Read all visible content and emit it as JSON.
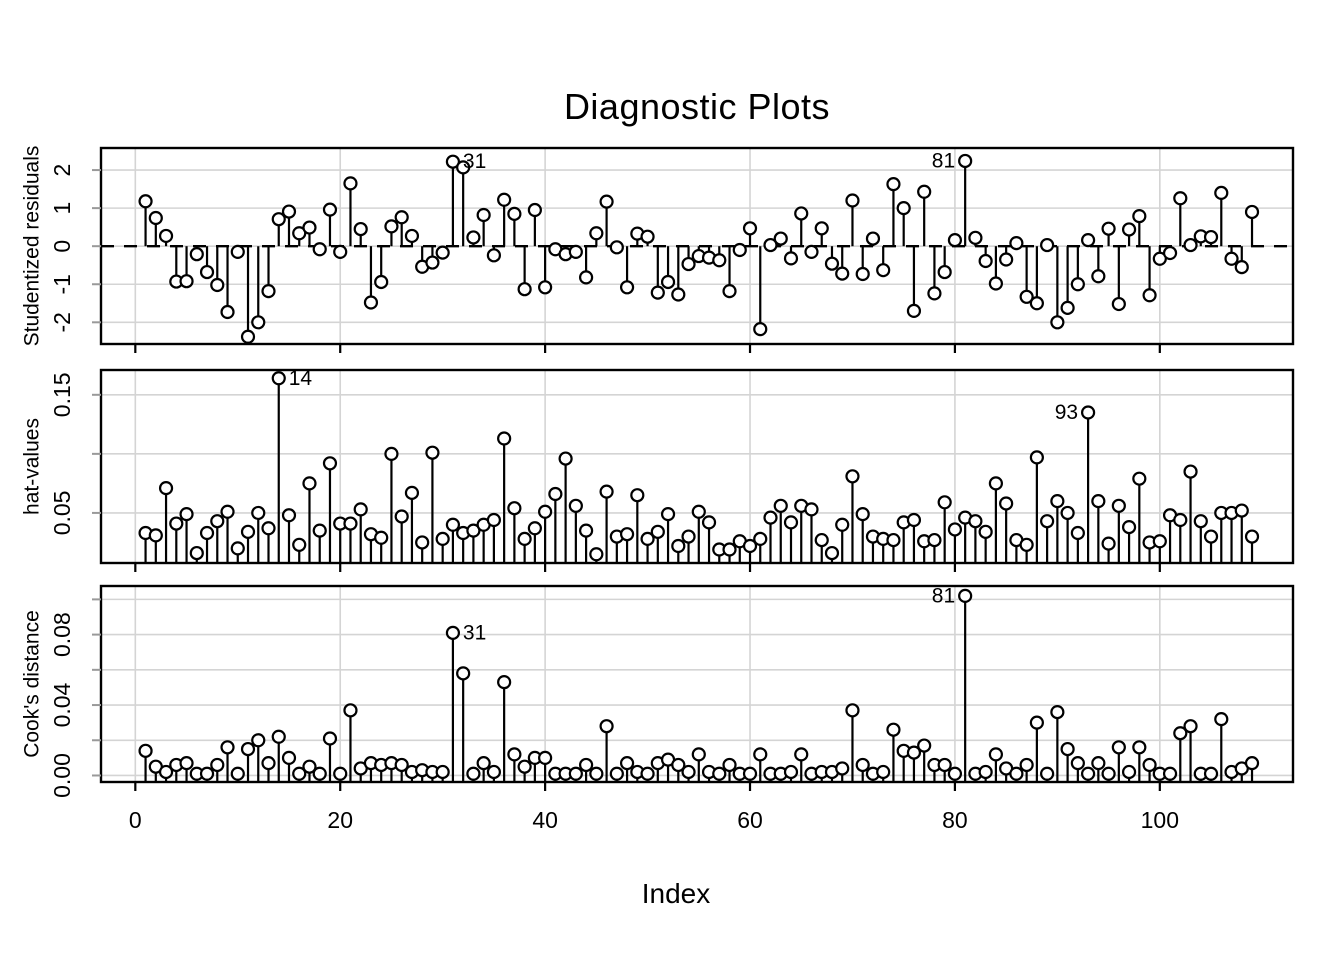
{
  "title": "Diagnostic Plots",
  "x_axis": {
    "label": "Index",
    "ticks": [
      0,
      20,
      40,
      60,
      80,
      100
    ],
    "range": [
      0,
      113
    ]
  },
  "colors": {
    "foreground": "#000000",
    "gridline": "#d4d4d4",
    "axis_tick_minor": "#999999",
    "point_fill": "#ffffff",
    "background": "#ffffff"
  },
  "chart_data": {
    "type": "stem",
    "title": "Diagnostic Plots",
    "xlabel": "Index",
    "x_start_index": 1,
    "n_points": 109,
    "panels": [
      {
        "name": "studentized-residuals",
        "ylabel": "Studentized residuals",
        "ytick_values": [
          -2,
          -1,
          0,
          1,
          2
        ],
        "ytick_labels": [
          "-2",
          "-1",
          "0",
          "1",
          "2"
        ],
        "gridlines": [
          -2,
          -1,
          0,
          1,
          2
        ],
        "ylim": [
          -2.57,
          2.58
        ],
        "baseline": 0,
        "zero_line_dashed": true,
        "annotations": [
          {
            "index": 31,
            "label": "31",
            "side": "right"
          },
          {
            "index": 81,
            "label": "81",
            "side": "left"
          }
        ],
        "values": [
          1.18,
          0.74,
          0.27,
          -0.93,
          -0.92,
          -0.21,
          -0.68,
          -1.02,
          -1.73,
          -0.15,
          -2.38,
          -2.0,
          -1.18,
          0.71,
          0.91,
          0.34,
          0.49,
          -0.08,
          0.96,
          -0.15,
          1.65,
          0.45,
          -1.48,
          -0.94,
          0.52,
          0.76,
          0.27,
          -0.54,
          -0.43,
          -0.17,
          2.22,
          2.07,
          0.23,
          0.82,
          -0.24,
          1.22,
          0.85,
          -1.13,
          0.95,
          -1.08,
          -0.08,
          -0.21,
          -0.15,
          -0.82,
          0.34,
          1.17,
          -0.03,
          -1.08,
          0.33,
          0.25,
          -1.22,
          -0.94,
          -1.27,
          -0.47,
          -0.26,
          -0.3,
          -0.37,
          -1.18,
          -0.1,
          0.47,
          -2.18,
          0.03,
          0.2,
          -0.32,
          0.86,
          -0.15,
          0.47,
          -0.46,
          -0.72,
          1.2,
          -0.73,
          0.2,
          -0.63,
          1.63,
          1.0,
          -1.7,
          1.43,
          -1.24,
          -0.68,
          0.16,
          2.24,
          0.22,
          -0.39,
          -0.98,
          -0.35,
          0.08,
          -1.33,
          -1.5,
          0.03,
          -2.0,
          -1.62,
          -1.0,
          0.16,
          -0.79,
          0.46,
          -1.52,
          0.44,
          0.79,
          -1.29,
          -0.33,
          -0.18,
          1.26,
          0.03,
          0.26,
          0.24,
          1.4,
          -0.33,
          -0.55,
          0.9
        ]
      },
      {
        "name": "hat-values",
        "ylabel": "hat-values",
        "ytick_values": [
          0.05,
          0.15
        ],
        "ytick_labels": [
          "0.05",
          "0.15"
        ],
        "gridlines": [
          0.05,
          0.1,
          0.15
        ],
        "ylim": [
          0.0076,
          0.171
        ],
        "baseline": "bottom",
        "zero_line_dashed": false,
        "annotations": [
          {
            "index": 14,
            "label": "14",
            "side": "right"
          },
          {
            "index": 93,
            "label": "93",
            "side": "left"
          }
        ],
        "values": [
          0.033,
          0.031,
          0.071,
          0.041,
          0.049,
          0.016,
          0.033,
          0.043,
          0.051,
          0.02,
          0.034,
          0.05,
          0.037,
          0.164,
          0.048,
          0.023,
          0.075,
          0.035,
          0.092,
          0.041,
          0.041,
          0.053,
          0.032,
          0.029,
          0.1,
          0.047,
          0.067,
          0.025,
          0.101,
          0.028,
          0.04,
          0.033,
          0.035,
          0.04,
          0.044,
          0.113,
          0.054,
          0.028,
          0.037,
          0.051,
          0.066,
          0.096,
          0.056,
          0.035,
          0.015,
          0.068,
          0.03,
          0.032,
          0.065,
          0.028,
          0.034,
          0.049,
          0.022,
          0.03,
          0.051,
          0.042,
          0.019,
          0.019,
          0.026,
          0.022,
          0.028,
          0.046,
          0.056,
          0.042,
          0.056,
          0.053,
          0.027,
          0.016,
          0.04,
          0.081,
          0.049,
          0.03,
          0.028,
          0.027,
          0.042,
          0.044,
          0.026,
          0.027,
          0.059,
          0.036,
          0.046,
          0.043,
          0.034,
          0.075,
          0.058,
          0.027,
          0.023,
          0.097,
          0.043,
          0.06,
          0.05,
          0.033,
          0.135,
          0.06,
          0.024,
          0.056,
          0.038,
          0.079,
          0.025,
          0.026,
          0.048,
          0.044,
          0.085,
          0.043,
          0.03,
          0.05,
          0.05,
          0.052,
          0.03
        ]
      },
      {
        "name": "cooks-distance",
        "ylabel": "Cook's distance",
        "ytick_values": [
          0.0,
          0.04,
          0.08
        ],
        "ytick_labels": [
          "0.00",
          "0.04",
          "0.08"
        ],
        "gridlines": [
          0,
          0.02,
          0.04,
          0.06,
          0.08,
          0.1
        ],
        "ylim": [
          -0.0037,
          0.1076
        ],
        "baseline": "bottom",
        "zero_line_dashed": false,
        "annotations": [
          {
            "index": 31,
            "label": "31",
            "side": "right"
          },
          {
            "index": 81,
            "label": "81",
            "side": "left"
          }
        ],
        "values": [
          0.014,
          0.005,
          0.002,
          0.006,
          0.007,
          0.001,
          0.001,
          0.006,
          0.016,
          0.001,
          0.015,
          0.02,
          0.007,
          0.022,
          0.01,
          0.001,
          0.005,
          0.001,
          0.021,
          0.001,
          0.037,
          0.004,
          0.007,
          0.006,
          0.007,
          0.006,
          0.002,
          0.003,
          0.002,
          0.002,
          0.081,
          0.058,
          0.001,
          0.007,
          0.002,
          0.053,
          0.012,
          0.005,
          0.01,
          0.01,
          0.001,
          0.001,
          0.001,
          0.006,
          0.001,
          0.028,
          0.001,
          0.007,
          0.002,
          0.001,
          0.007,
          0.009,
          0.006,
          0.002,
          0.012,
          0.002,
          0.001,
          0.006,
          0.001,
          0.001,
          0.012,
          0.001,
          0.001,
          0.002,
          0.012,
          0.001,
          0.002,
          0.002,
          0.004,
          0.037,
          0.006,
          0.001,
          0.002,
          0.026,
          0.014,
          0.013,
          0.017,
          0.006,
          0.006,
          0.001,
          0.102,
          0.001,
          0.002,
          0.012,
          0.004,
          0.001,
          0.006,
          0.03,
          0.001,
          0.036,
          0.015,
          0.007,
          0.001,
          0.007,
          0.001,
          0.016,
          0.002,
          0.016,
          0.006,
          0.001,
          0.001,
          0.024,
          0.028,
          0.001,
          0.001,
          0.032,
          0.002,
          0.004,
          0.007
        ]
      }
    ]
  }
}
